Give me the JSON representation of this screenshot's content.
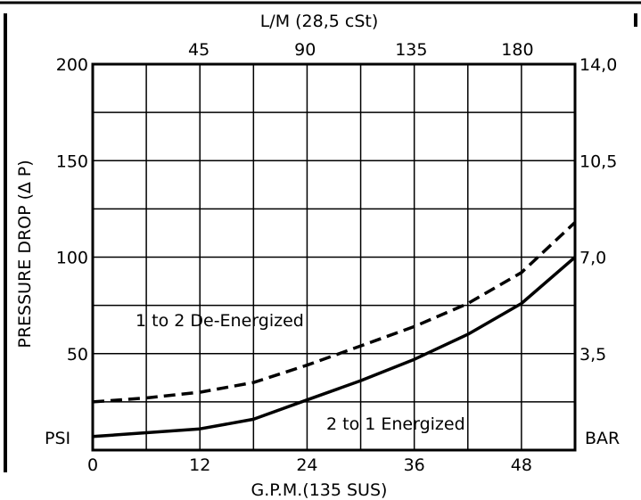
{
  "chart_data": {
    "type": "line",
    "title": "",
    "xlabel": "G.P.M.(135 SUS)",
    "ylabel": "PRESSURE DROP (∆ P)",
    "x2label": "L/M (28,5 cSt)",
    "xlim": [
      0,
      54
    ],
    "ylim": [
      0,
      200
    ],
    "x_ticks": [
      "0",
      "12",
      "24",
      "36",
      "48"
    ],
    "x_tick_values": [
      0,
      12,
      24,
      36,
      48
    ],
    "x2_ticks": [
      "45",
      "90",
      "135",
      "180"
    ],
    "x2_tick_values": [
      45,
      90,
      135,
      180
    ],
    "x2_scale_per_x": 3.785,
    "y_ticks": [
      "50",
      "100",
      "150",
      "200"
    ],
    "y_tick_values": [
      50,
      100,
      150,
      200
    ],
    "y2_ticks": [
      "3,5",
      "7,0",
      "10,5",
      "14,0"
    ],
    "y_unit_left": "PSI",
    "y_unit_right": "BAR",
    "grid": true,
    "x_grid_step": 6,
    "y_grid_step": 25,
    "series": [
      {
        "name": "1 to 2 De-Energized",
        "style": "dashed",
        "x": [
          0,
          6,
          12,
          18,
          24,
          30,
          36,
          42,
          48,
          54
        ],
        "y": [
          25,
          27,
          30,
          35,
          44,
          54,
          64,
          76,
          92,
          118
        ]
      },
      {
        "name": "2 to 1 Energized",
        "style": "solid",
        "x": [
          0,
          6,
          12,
          18,
          24,
          30,
          36,
          42,
          48,
          54
        ],
        "y": [
          7,
          9,
          11,
          16,
          26,
          36,
          47,
          60,
          76,
          100
        ]
      }
    ],
    "series_labels": [
      "1 to 2 De-Energized",
      "2 to 1 Energized"
    ]
  }
}
